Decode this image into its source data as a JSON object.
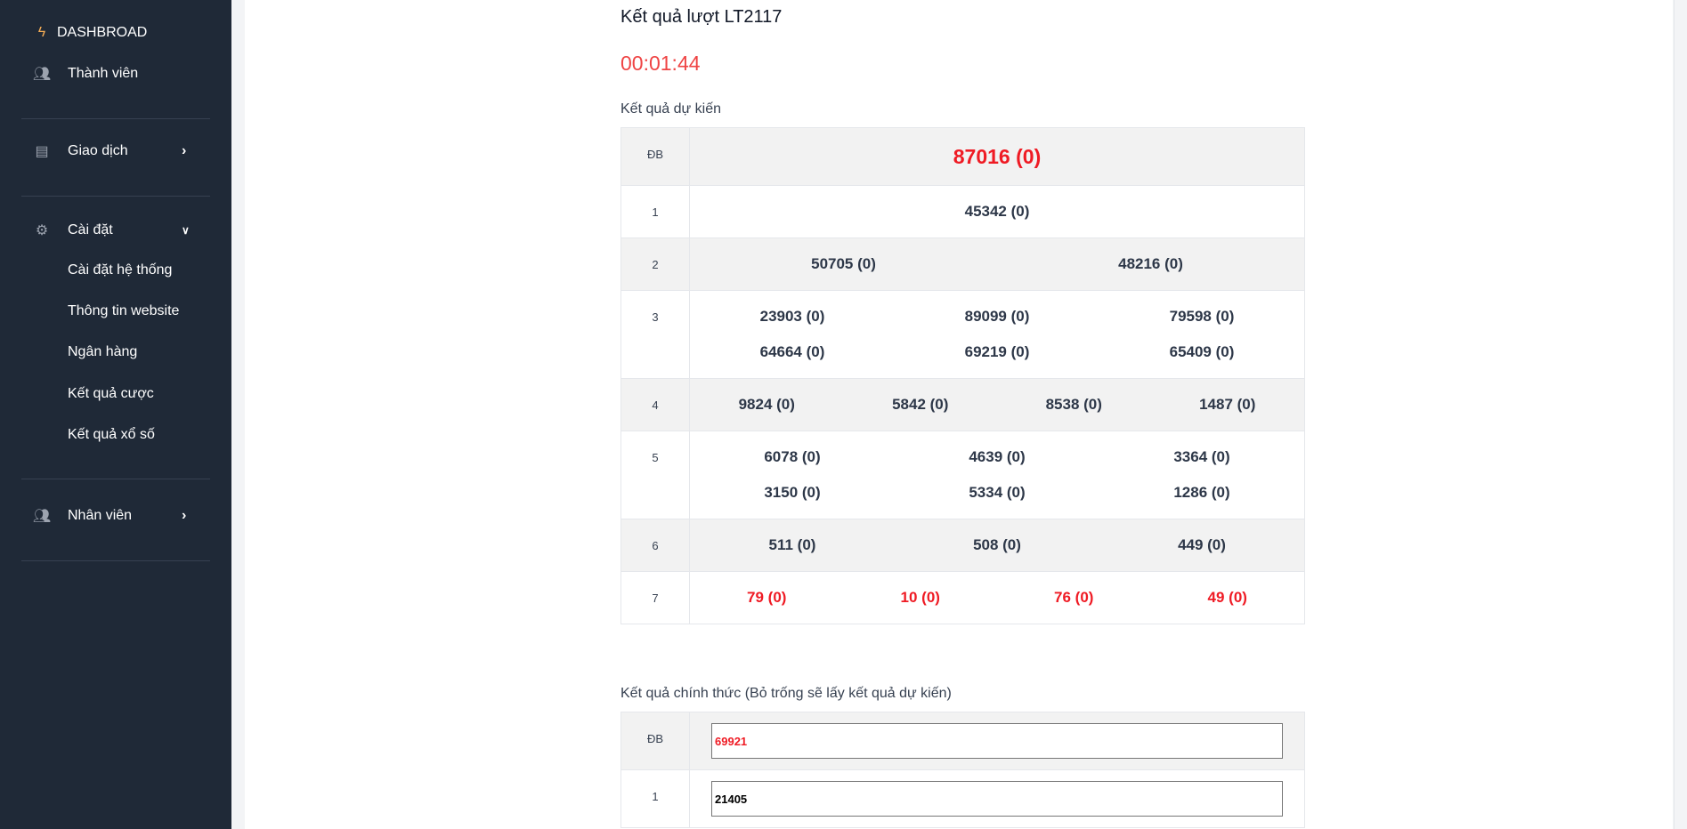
{
  "sidebar": {
    "brand": "DASHBROAD",
    "items": [
      {
        "label": "Thành viên",
        "icon": "users-icon"
      },
      {
        "label": "Giao dịch",
        "icon": "clipboard-icon"
      },
      {
        "label": "Cài đặt",
        "icon": "gear-icon"
      },
      {
        "label": "Cài đặt hệ thống"
      },
      {
        "label": "Thông tin website"
      },
      {
        "label": "Ngân hàng"
      },
      {
        "label": "Kết quả cược"
      },
      {
        "label": "Kết quả xổ số"
      },
      {
        "label": "Nhân viên",
        "icon": "users-icon"
      }
    ]
  },
  "main": {
    "title": "Kết quả lượt LT2117",
    "timer": "00:01:44",
    "predicted_heading": "Kết quả dự kiến",
    "predicted": [
      {
        "prize": "ĐB",
        "values": [
          "87016 (0)"
        ]
      },
      {
        "prize": "1",
        "values": [
          "45342 (0)"
        ]
      },
      {
        "prize": "2",
        "values": [
          "50705 (0)",
          "48216 (0)"
        ]
      },
      {
        "prize": "3",
        "values": [
          "23903 (0)",
          "89099 (0)",
          "79598 (0)",
          "64664 (0)",
          "69219 (0)",
          "65409 (0)"
        ]
      },
      {
        "prize": "4",
        "values": [
          "9824 (0)",
          "5842 (0)",
          "8538 (0)",
          "1487 (0)"
        ]
      },
      {
        "prize": "5",
        "values": [
          "6078 (0)",
          "4639 (0)",
          "3364 (0)",
          "3150 (0)",
          "5334 (0)",
          "1286 (0)"
        ]
      },
      {
        "prize": "6",
        "values": [
          "511 (0)",
          "508 (0)",
          "449 (0)"
        ]
      },
      {
        "prize": "7",
        "values": [
          "79 (0)",
          "10 (0)",
          "76 (0)",
          "49 (0)"
        ]
      }
    ],
    "official_heading": "Kết quả chính thức (Bỏ trống sẽ lấy kết quả dự kiến)",
    "official": [
      {
        "prize": "ĐB",
        "value": "69921",
        "color": "#ef1b24"
      },
      {
        "prize": "1",
        "value": "21405",
        "color": "#000000"
      }
    ]
  },
  "colors": {
    "sidebar": "#1f2937",
    "accent": "#ef1b24",
    "timer": "#ef4444",
    "brand_icon": "#f6ad55"
  }
}
